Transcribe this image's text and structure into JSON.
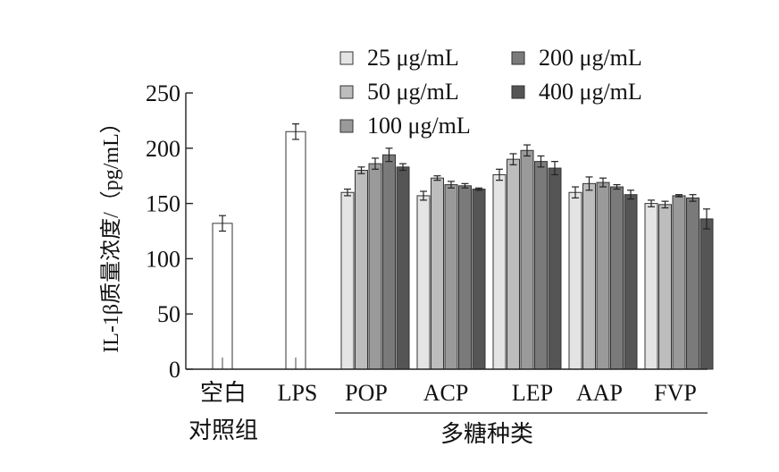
{
  "chart_data": {
    "type": "bar",
    "ylabel": "IL-1β质量浓度/（pg/mL）",
    "ylim": [
      0,
      250
    ],
    "yticks": [
      0,
      50,
      100,
      150,
      200,
      250
    ],
    "group_label": "多糖种类",
    "control": {
      "label_line1": "空白",
      "label_line2": "对照组",
      "value": 132,
      "error": 7
    },
    "lps": {
      "label": "LPS",
      "value": 215,
      "error": 7
    },
    "categories": [
      "POP",
      "ACP",
      "LEP",
      "AAP",
      "FVP"
    ],
    "series": [
      {
        "name": "25 μg/mL",
        "color": "#e4e4e4",
        "values": [
          160,
          157,
          176,
          160,
          150
        ],
        "errors": [
          3,
          4,
          5,
          5,
          3
        ]
      },
      {
        "name": "50 μg/mL",
        "color": "#bdbdbd",
        "values": [
          180,
          173,
          190,
          168,
          149
        ],
        "errors": [
          3,
          2,
          5,
          6,
          3
        ]
      },
      {
        "name": "100 μg/mL",
        "color": "#9a9a9a",
        "values": [
          186,
          167,
          198,
          169,
          157
        ],
        "errors": [
          5,
          3,
          5,
          4,
          1
        ]
      },
      {
        "name": "200 μg/mL",
        "color": "#7a7a7a",
        "values": [
          194,
          166,
          188,
          165,
          155
        ],
        "errors": [
          6,
          2,
          5,
          2,
          3
        ]
      },
      {
        "name": "400 μg/mL",
        "color": "#555555",
        "values": [
          183,
          163,
          182,
          158,
          136
        ],
        "errors": [
          3,
          1,
          6,
          4,
          9
        ]
      }
    ],
    "legend_position": "top"
  }
}
